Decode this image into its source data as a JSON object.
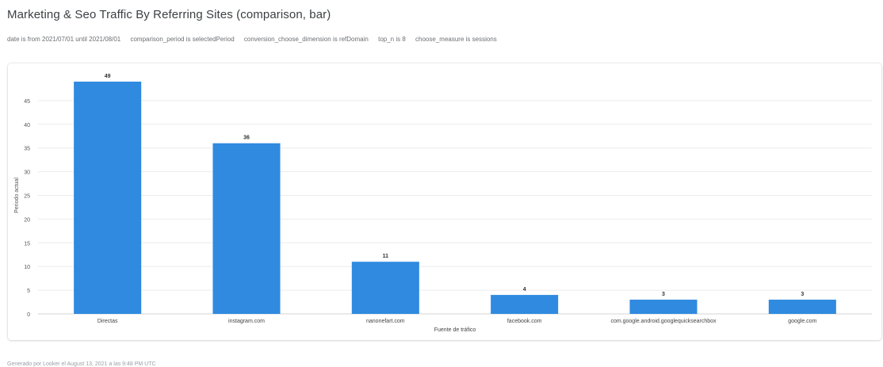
{
  "report": {
    "title": "Marketing & Seo Traffic By Referring Sites (comparison, bar)",
    "filters": [
      "date is from 2021/07/01 until 2021/08/01",
      "comparison_period is selectedPeriod",
      "conversion_choose_dimension is refDomain",
      "top_n is 8",
      "choose_measure is sessions"
    ],
    "footer": "Generado por Looker el August 13, 2021 a las 9:48 PM UTC"
  },
  "chart_data": {
    "type": "bar",
    "categories": [
      "Directas",
      "instagram.com",
      "nanonefart.com",
      "facebook.com",
      "com.google.android.googlequicksearchbox",
      "google.com"
    ],
    "values": [
      49,
      36,
      11,
      4,
      3,
      3
    ],
    "title": "",
    "xlabel": "Fuente de tráfico",
    "ylabel": "Periodo actual",
    "ylim": [
      0,
      50
    ],
    "yticks": [
      0,
      5,
      10,
      15,
      20,
      25,
      30,
      35,
      40,
      45
    ],
    "grid": true,
    "legend": "none",
    "data_labels": true,
    "bar_color": "#2f8ae0"
  }
}
